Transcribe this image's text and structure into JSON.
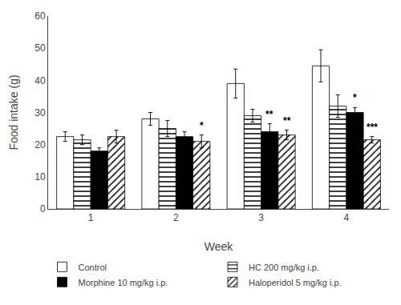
{
  "chart_data": {
    "type": "bar",
    "xlabel": "Week",
    "ylabel": "Food intake (g)",
    "categories": [
      "1",
      "2",
      "3",
      "4"
    ],
    "series": [
      {
        "name": "Control",
        "color": "white",
        "values": [
          22.5,
          28.0,
          39.0,
          44.5
        ],
        "errors": [
          1.5,
          2.0,
          4.5,
          5.0
        ]
      },
      {
        "name": "HC 200 mg/kg i.p.",
        "color": "white",
        "marker": "hatch-horizontal",
        "values": [
          21.5,
          25.0,
          29.0,
          32.0
        ],
        "errors": [
          1.5,
          2.5,
          2.0,
          3.5
        ]
      },
      {
        "name": "Morphine 10 mg/kg i.p.",
        "color": "black",
        "values": [
          18.0,
          22.5,
          24.0,
          30.0
        ],
        "errors": [
          1.0,
          1.5,
          2.5,
          1.5
        ]
      },
      {
        "name": "Haloperidol 5 mg/kg i.p.",
        "color": "white",
        "marker": "hatch-diagonal",
        "values": [
          22.5,
          21.0,
          23.0,
          21.5
        ],
        "errors": [
          2.0,
          2.0,
          1.5,
          1.0
        ]
      }
    ],
    "annotations": [
      {
        "category": "2",
        "series": "Haloperidol 5 mg/kg i.p.",
        "text": "*"
      },
      {
        "category": "3",
        "series": "Morphine 10 mg/kg i.p.",
        "text": "**"
      },
      {
        "category": "3",
        "series": "Haloperidol 5 mg/kg i.p.",
        "text": "**"
      },
      {
        "category": "4",
        "series": "Morphine 10 mg/kg i.p.",
        "text": "*"
      },
      {
        "category": "4",
        "series": "Haloperidol 5 mg/kg i.p.",
        "text": "***"
      }
    ],
    "ylim": [
      0,
      60
    ],
    "yticks": [
      0,
      10,
      20,
      30,
      40,
      50,
      60
    ],
    "grid": false,
    "legend": "bottom"
  }
}
